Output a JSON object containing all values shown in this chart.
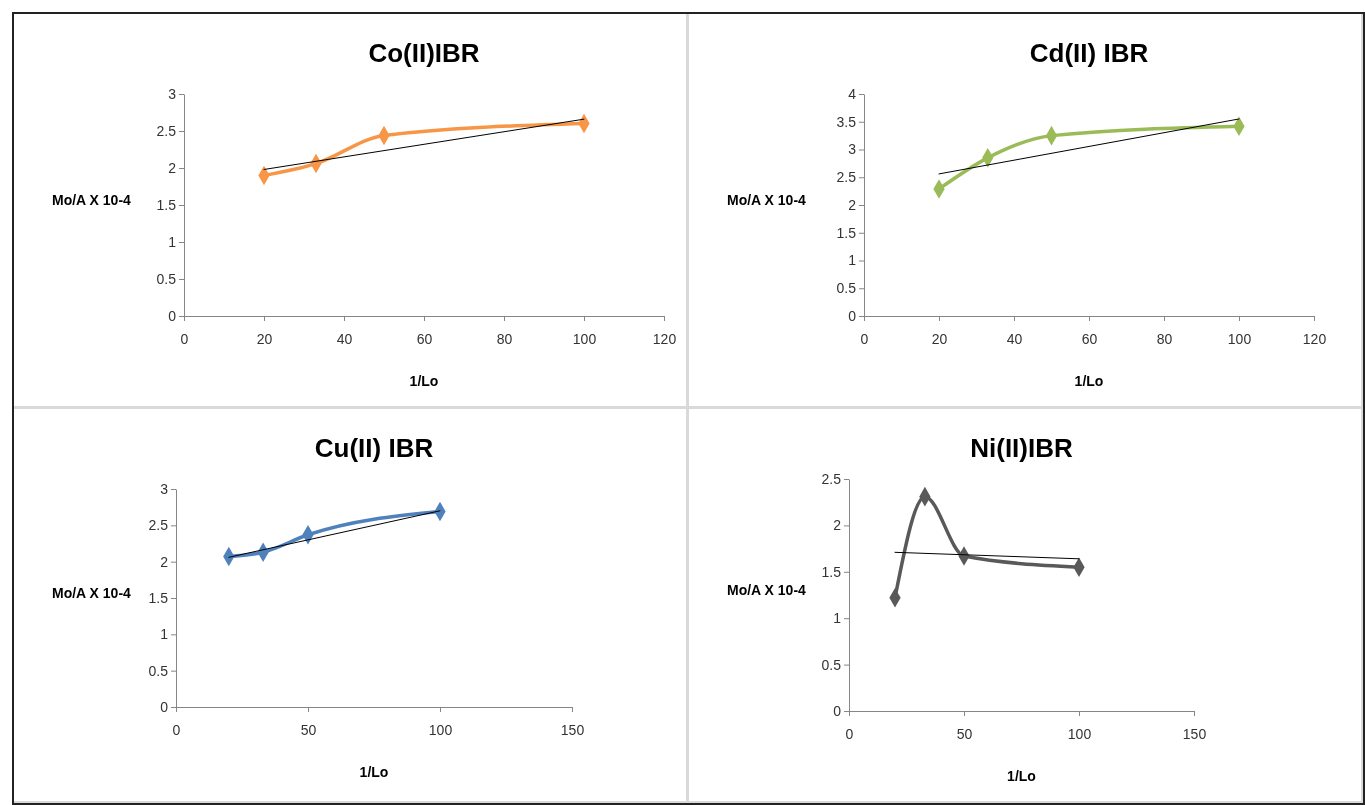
{
  "chart_data": [
    {
      "type": "line",
      "title": "Co(II)IBR",
      "xlabel": "1/Lo",
      "ylabel": "Mo/A X 10-4",
      "xlim": [
        0,
        120
      ],
      "xticks": [
        0,
        20,
        40,
        60,
        80,
        100,
        120
      ],
      "ylim": [
        0,
        3
      ],
      "yticks": [
        0,
        0.5,
        1,
        1.5,
        2,
        2.5,
        3
      ],
      "series": [
        {
          "color": "#f79646",
          "x": [
            20,
            33,
            50,
            100
          ],
          "values": [
            1.9,
            2.06,
            2.44,
            2.6
          ],
          "marker": "diamond"
        },
        {
          "color": "#000000",
          "x": [
            20,
            100
          ],
          "values": [
            1.98,
            2.66
          ],
          "marker": "none"
        }
      ]
    },
    {
      "type": "line",
      "title": "Cd(II) IBR",
      "xlabel": "1/Lo",
      "ylabel": "Mo/A X 10-4",
      "xlim": [
        0,
        120
      ],
      "xticks": [
        0,
        20,
        40,
        60,
        80,
        100,
        120
      ],
      "ylim": [
        0,
        4
      ],
      "yticks": [
        0,
        0.5,
        1,
        1.5,
        2,
        2.5,
        3,
        3.5,
        4
      ],
      "series": [
        {
          "color": "#9bbb59",
          "x": [
            20,
            33,
            50,
            100
          ],
          "values": [
            2.29,
            2.85,
            3.25,
            3.42
          ],
          "marker": "diamond"
        },
        {
          "color": "#000000",
          "x": [
            20,
            100
          ],
          "values": [
            2.56,
            3.55
          ],
          "marker": "none"
        }
      ]
    },
    {
      "type": "line",
      "title": "Cu(II) IBR",
      "xlabel": "1/Lo",
      "ylabel": "Mo/A X 10-4",
      "xlim": [
        0,
        150
      ],
      "xticks": [
        0,
        50,
        100,
        150
      ],
      "ylim": [
        0,
        3
      ],
      "yticks": [
        0,
        0.5,
        1,
        1.5,
        2,
        2.5,
        3
      ],
      "series": [
        {
          "color": "#4f81bd",
          "x": [
            20,
            33,
            50,
            100
          ],
          "values": [
            2.07,
            2.13,
            2.37,
            2.69
          ],
          "marker": "diamond"
        },
        {
          "color": "#000000",
          "x": [
            20,
            100
          ],
          "values": [
            2.06,
            2.7
          ],
          "marker": "none"
        }
      ]
    },
    {
      "type": "line",
      "title": "Ni(II)IBR",
      "xlabel": "1/Lo",
      "ylabel": "Mo/A X 10-4",
      "xlim": [
        0,
        150
      ],
      "xticks": [
        0,
        50,
        100,
        150
      ],
      "ylim": [
        0,
        2.5
      ],
      "yticks": [
        0,
        0.5,
        1,
        1.5,
        2,
        2.5
      ],
      "series": [
        {
          "color": "#595959",
          "x": [
            20,
            33,
            50,
            100
          ],
          "values": [
            1.22,
            2.31,
            1.67,
            1.55
          ],
          "marker": "diamond"
        },
        {
          "color": "#000000",
          "x": [
            20,
            100
          ],
          "values": [
            1.71,
            1.64
          ],
          "marker": "none"
        }
      ]
    }
  ]
}
